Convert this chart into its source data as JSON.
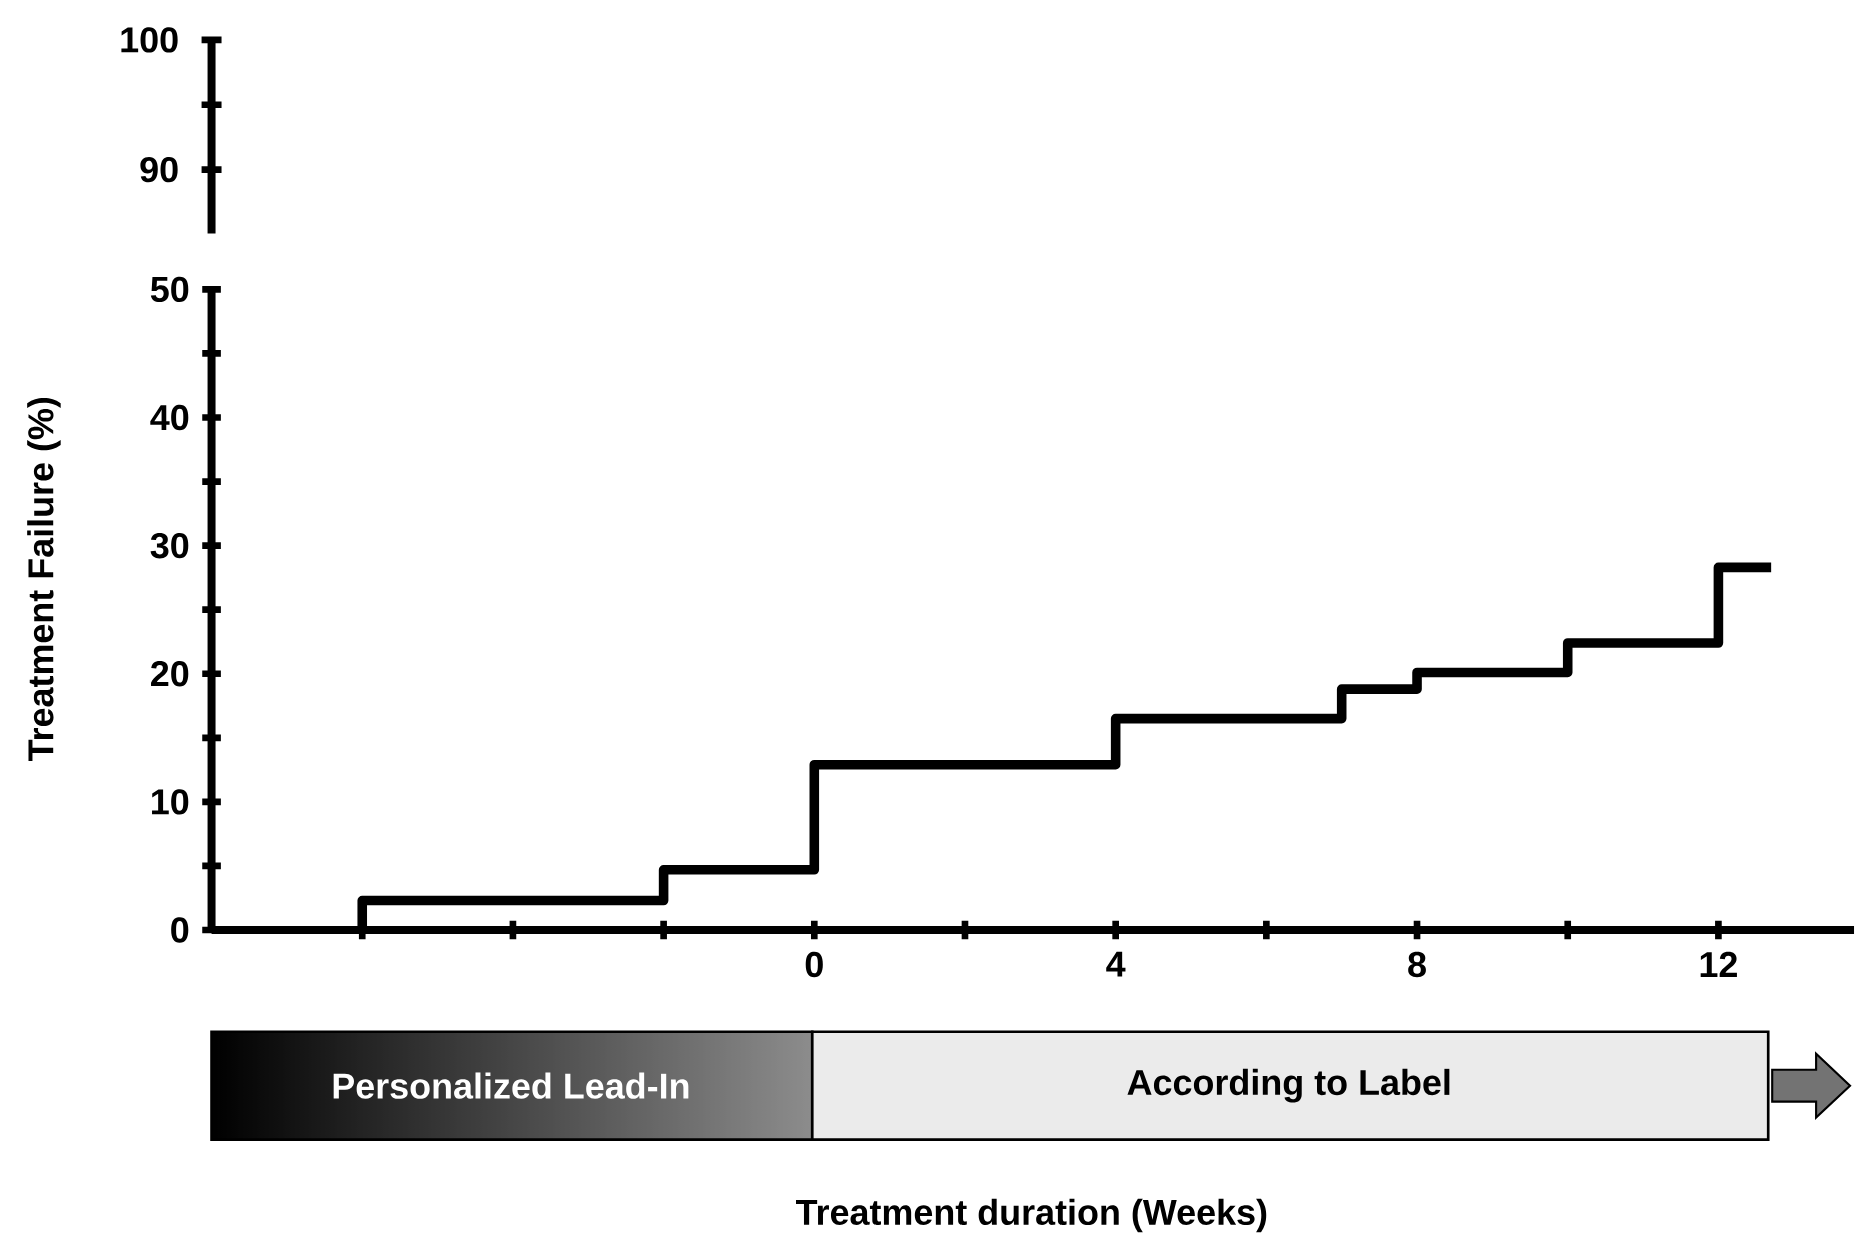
{
  "chart_data": {
    "type": "step",
    "ylabel": "Treatment Failure (%)",
    "xlim": [
      -8,
      13.8
    ],
    "ylim": [
      0,
      50
    ],
    "xticks": [
      {
        "value": -6,
        "label": null
      },
      {
        "value": -4,
        "label": null
      },
      {
        "value": -2,
        "label": null
      },
      0,
      {
        "value": 2,
        "label": null
      },
      4,
      {
        "value": 6,
        "label": null
      },
      8,
      {
        "value": 10,
        "label": null
      },
      12
    ],
    "yticks": [
      0,
      {
        "value": 5,
        "label": null
      },
      10,
      {
        "value": 15,
        "label": null
      },
      20,
      {
        "value": 25,
        "label": null
      },
      30,
      {
        "value": 35,
        "label": null
      },
      40,
      {
        "value": 45,
        "label": null
      },
      50
    ],
    "series": [
      {
        "color": "#000000",
        "x": [
          -6,
          -6,
          -2,
          0,
          4,
          7,
          8,
          10,
          12,
          12.7
        ],
        "values": [
          0,
          2.3,
          4.7,
          12.9,
          16.5,
          18.8,
          20.1,
          22.4,
          28.3,
          28.3
        ]
      }
    ],
    "annotations": [
      "Personalized Lead-In",
      "According to Label",
      "100",
      "90",
      "Treatment duration (Weeks)"
    ]
  }
}
